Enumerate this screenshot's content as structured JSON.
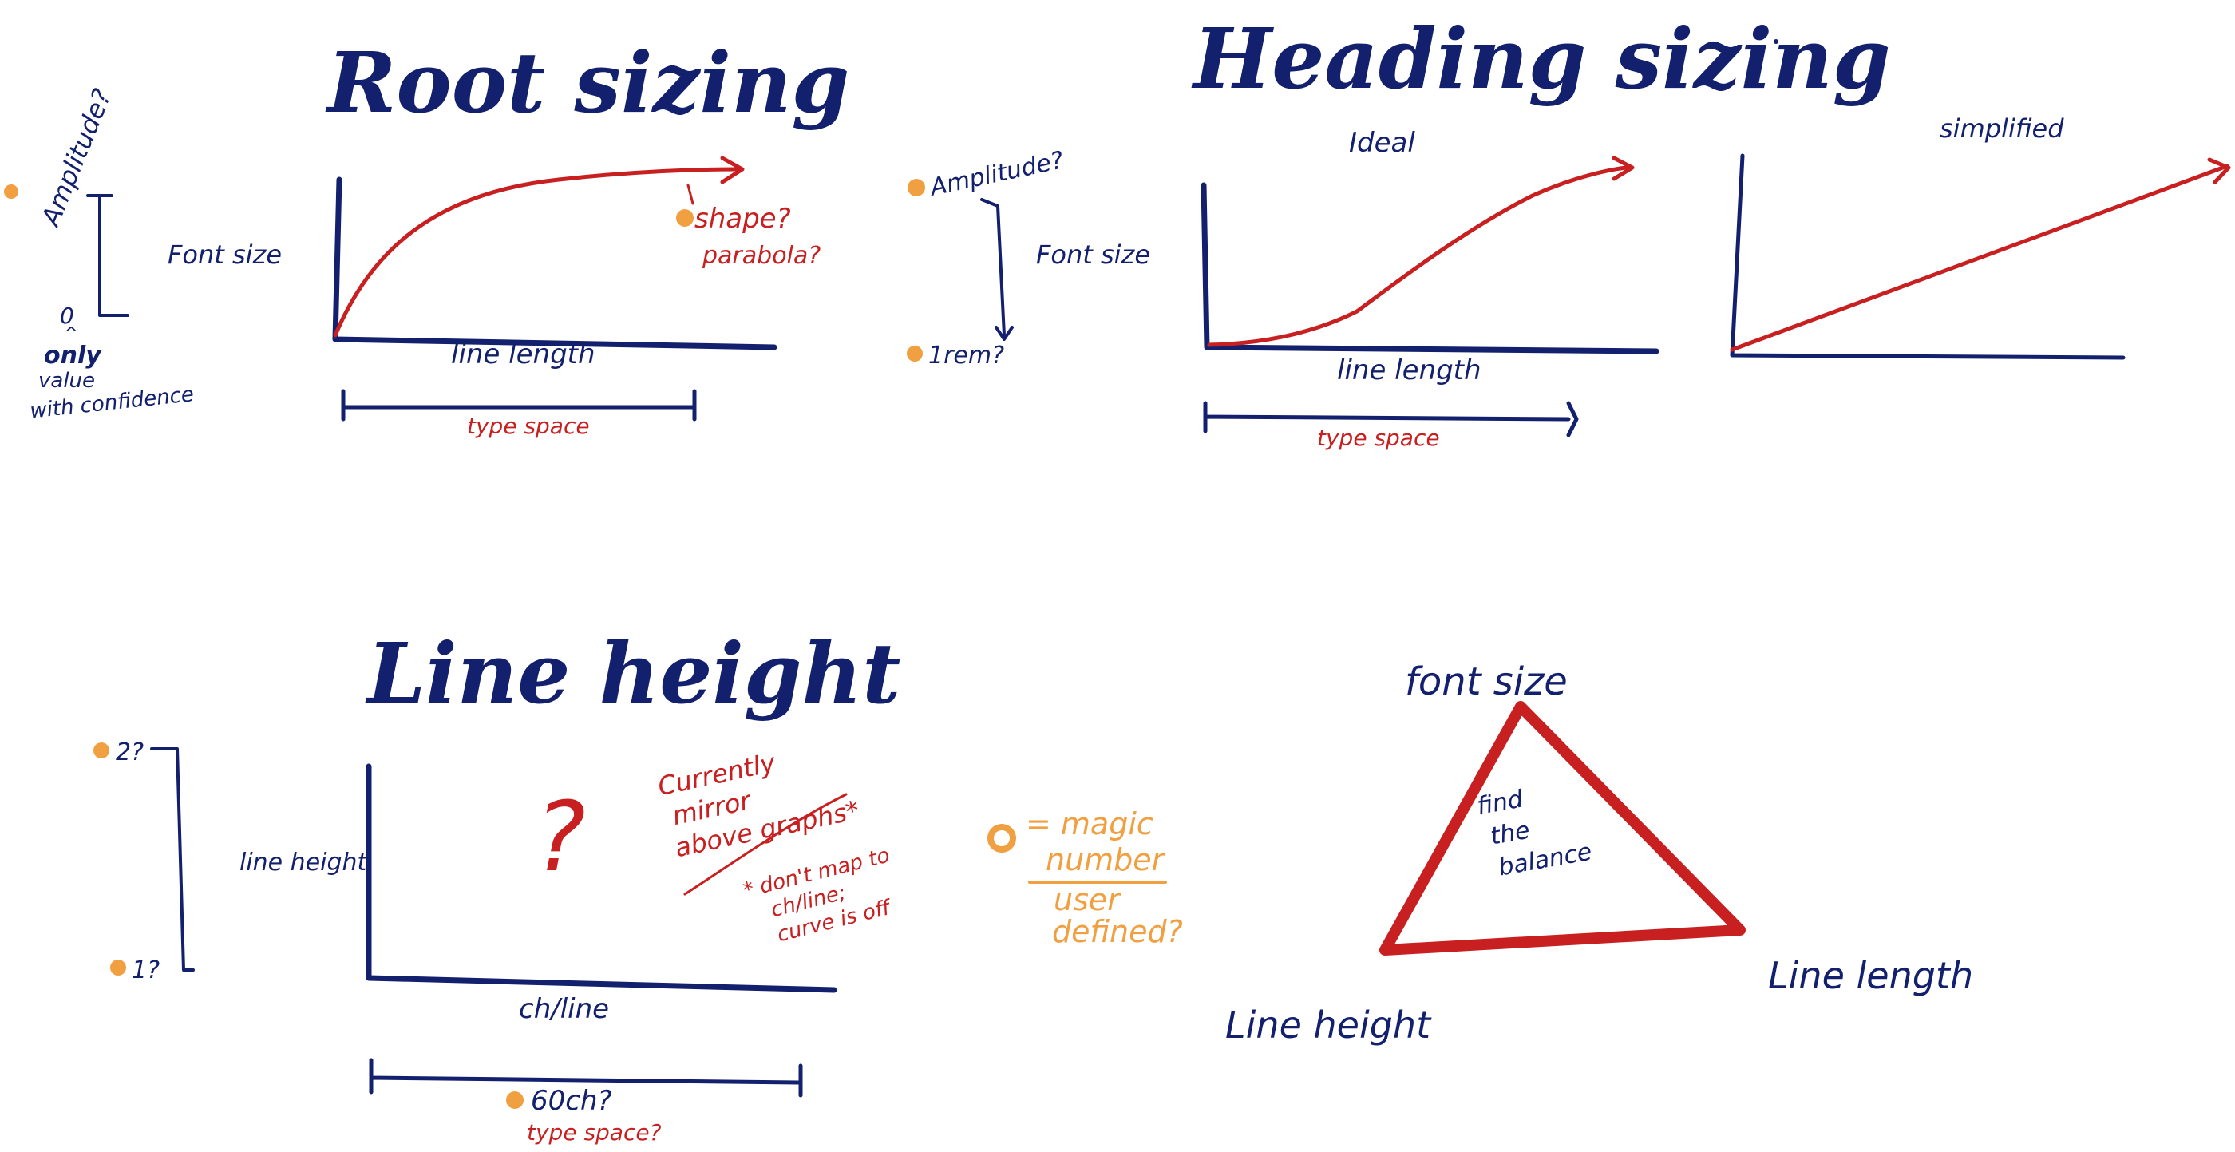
{
  "root_sizing": {
    "title": "Root sizing",
    "amplitude_label": "Amplitude?",
    "zero_label": "0",
    "only_label": "only",
    "value_label": "value",
    "confidence_label": "with confidence",
    "y_axis_label": "Font size",
    "x_axis_label": "line length",
    "shape_label": "shape?",
    "parabola_label": "parabola?",
    "type_space_label": "type space"
  },
  "heading_sizing": {
    "title": "Heading sizing",
    "ideal_label": "Ideal",
    "simplified_label": "simplified",
    "amplitude_label": "Amplitude?",
    "rem_label": "1rem?",
    "y_axis_label": "Font size",
    "x_axis_label": "line length",
    "type_space_label": "type space"
  },
  "line_height": {
    "title": "Line height",
    "top_label": "2?",
    "bottom_label": "1?",
    "y_axis_label": "line height",
    "x_axis_label": "ch/line",
    "question_mark": "?",
    "note_line1": "Currently",
    "note_line2": "mirror",
    "note_line3": "above graphs*",
    "footnote_line1": "* don't map to",
    "footnote_line2": "ch/line;",
    "footnote_line3": "curve is off",
    "range_label": "60ch?",
    "type_space_label": "type space?"
  },
  "legend": {
    "line1": "= magic",
    "line2": "number",
    "line3": "user",
    "line4": "defined?"
  },
  "triangle": {
    "top_label": "font size",
    "right_label": "Line length",
    "left_label": "Line height",
    "center_line1": "find",
    "center_line2": "the",
    "center_line3": "balance"
  },
  "colors": {
    "ink_navy": "#12206e",
    "ink_red": "#c82020",
    "ink_orange": "#f0a040"
  }
}
